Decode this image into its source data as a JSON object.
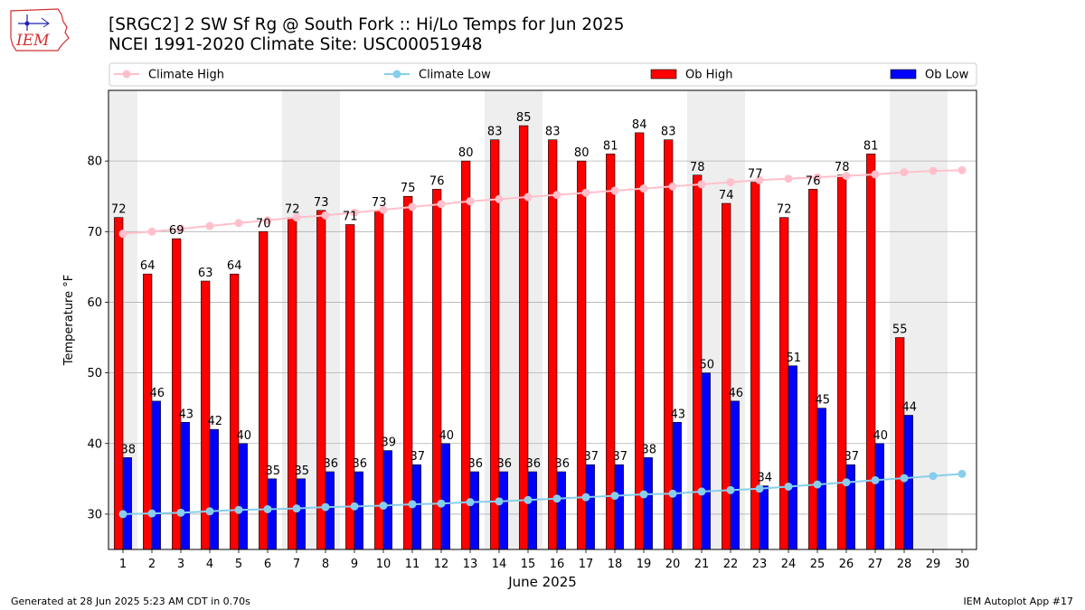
{
  "header": {
    "logo_text": "IEM",
    "title_line1": "[SRGC2] 2 SW Sf Rg @ South Fork :: Hi/Lo Temps for Jun 2025",
    "title_line2": "NCEI 1991-2020 Climate Site: USC00051948"
  },
  "footer": {
    "generated": "Generated at 28 Jun 2025 5:23 AM CDT in 0.70s",
    "app": "IEM Autoplot App #17"
  },
  "colors": {
    "ob_high": "#ff0000",
    "ob_low": "#0000ff",
    "climate_high": "#ffc0cb",
    "climate_low": "#87ceeb",
    "weekend_shade": "#eeeeee",
    "grid": "#b0b0b0"
  },
  "chart_data": {
    "type": "bar",
    "xlabel": "June 2025",
    "ylabel": "Temperature °F",
    "xlim": [
      0.5,
      30.5
    ],
    "ylim": [
      25,
      90
    ],
    "yticks": [
      30,
      40,
      50,
      60,
      70,
      80
    ],
    "grid": "horizontal",
    "legend_placement": "top",
    "legend": [
      "Climate High",
      "Climate Low",
      "Ob High",
      "Ob Low"
    ],
    "weekend_days": [
      [
        1
      ],
      [
        7,
        8
      ],
      [
        14,
        15
      ],
      [
        21,
        22
      ],
      [
        28,
        29
      ]
    ],
    "days": [
      1,
      2,
      3,
      4,
      5,
      6,
      7,
      8,
      9,
      10,
      11,
      12,
      13,
      14,
      15,
      16,
      17,
      18,
      19,
      20,
      21,
      22,
      23,
      24,
      25,
      26,
      27,
      28,
      29,
      30
    ],
    "series": [
      {
        "name": "Ob High",
        "kind": "bar",
        "values": [
          72,
          64,
          69,
          63,
          64,
          70,
          72,
          73,
          71,
          73,
          75,
          76,
          80,
          83,
          85,
          83,
          80,
          81,
          84,
          83,
          78,
          74,
          77,
          72,
          76,
          78,
          81,
          55
        ]
      },
      {
        "name": "Ob Low",
        "kind": "bar",
        "values": [
          38,
          46,
          43,
          42,
          40,
          35,
          35,
          36,
          36,
          39,
          37,
          40,
          36,
          36,
          36,
          36,
          37,
          37,
          38,
          43,
          50,
          46,
          34,
          51,
          45,
          37,
          40,
          44
        ]
      },
      {
        "name": "Climate High",
        "kind": "line",
        "values": [
          69.7,
          70.0,
          70.4,
          70.8,
          71.2,
          71.6,
          72.0,
          72.3,
          72.7,
          73.1,
          73.5,
          73.9,
          74.3,
          74.6,
          74.9,
          75.2,
          75.5,
          75.8,
          76.1,
          76.4,
          76.7,
          77.0,
          77.3,
          77.5,
          77.7,
          77.9,
          78.1,
          78.4,
          78.6,
          78.7
        ]
      },
      {
        "name": "Climate Low",
        "kind": "line",
        "values": [
          30.0,
          30.1,
          30.2,
          30.4,
          30.6,
          30.7,
          30.8,
          31.0,
          31.1,
          31.2,
          31.4,
          31.5,
          31.7,
          31.8,
          32.0,
          32.2,
          32.4,
          32.6,
          32.8,
          32.9,
          33.2,
          33.4,
          33.6,
          33.9,
          34.2,
          34.5,
          34.8,
          35.1,
          35.4,
          35.7
        ]
      }
    ]
  }
}
